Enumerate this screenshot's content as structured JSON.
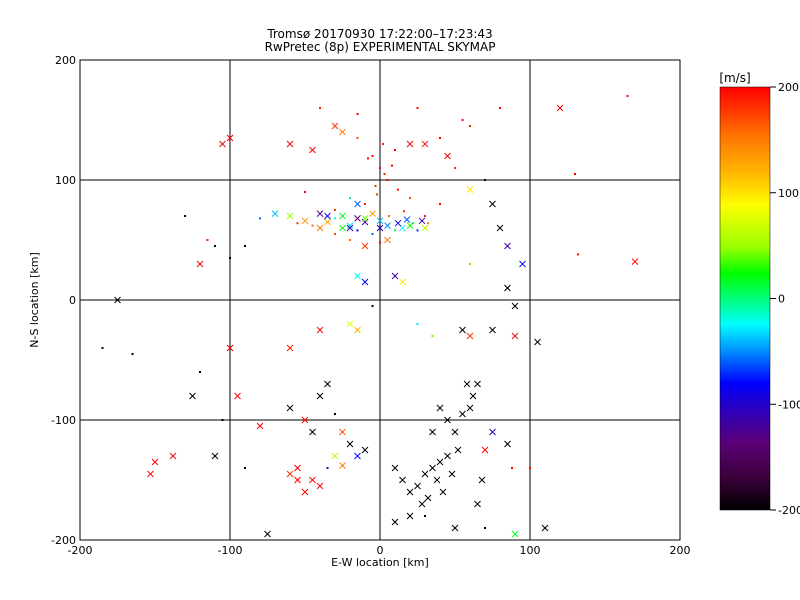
{
  "chart_data": {
    "type": "scatter",
    "title": "Tromsø 20170930 17:22:00–17:23:43",
    "subtitle": "RwPretec (8p) EXPERIMENTAL SKYMAP",
    "xlabel": "E-W location [km]",
    "ylabel": "N-S location [km]",
    "xlim": [
      -200,
      200
    ],
    "ylim": [
      -200,
      200
    ],
    "x_ticks": [
      -200,
      -100,
      0,
      100,
      200
    ],
    "y_ticks": [
      -200,
      -100,
      0,
      100,
      200
    ],
    "x_tick_labels": [
      "-200",
      "-100",
      "0",
      "100",
      "200"
    ],
    "y_tick_labels": [
      "-200",
      "-100",
      "0",
      "100",
      "200"
    ],
    "grid": true,
    "colorbar": {
      "label": "[m/s]",
      "range": [
        -200,
        200
      ],
      "ticks": [
        200,
        100,
        0,
        -100,
        -200
      ],
      "tick_labels": [
        "200",
        "100",
        "0",
        "-100",
        "-200"
      ],
      "placement": "right",
      "colormap": [
        "#000000",
        "#3d003d",
        "#5a0078",
        "#2a00c0",
        "#0000ff",
        "#0096ff",
        "#00ffff",
        "#00ff78",
        "#00ff00",
        "#96ff00",
        "#ffff00",
        "#ffb400",
        "#ff7800",
        "#ff0000"
      ]
    },
    "markers": {
      "small": "dot",
      "large": "x"
    },
    "points": [
      [
        -45,
        125,
        210,
        "x"
      ],
      [
        -30,
        145,
        180,
        "x"
      ],
      [
        -25,
        140,
        150,
        "x"
      ],
      [
        -15,
        135,
        170,
        "dot"
      ],
      [
        -5,
        120,
        200,
        "dot"
      ],
      [
        0,
        110,
        200,
        "dot"
      ],
      [
        3,
        105,
        190,
        "dot"
      ],
      [
        5,
        100,
        200,
        "dot"
      ],
      [
        -3,
        95,
        185,
        "dot"
      ],
      [
        8,
        112,
        200,
        "dot"
      ],
      [
        -8,
        118,
        195,
        "dot"
      ],
      [
        10,
        125,
        200,
        "dot"
      ],
      [
        2,
        130,
        190,
        "dot"
      ],
      [
        -2,
        88,
        180,
        "dot"
      ],
      [
        12,
        92,
        200,
        "dot"
      ],
      [
        20,
        130,
        200,
        "x"
      ],
      [
        30,
        130,
        190,
        "x"
      ],
      [
        40,
        135,
        200,
        "dot"
      ],
      [
        45,
        120,
        200,
        "x"
      ],
      [
        50,
        110,
        180,
        "dot"
      ],
      [
        40,
        80,
        200,
        "dot"
      ],
      [
        30,
        70,
        190,
        "dot"
      ],
      [
        20,
        85,
        170,
        "dot"
      ],
      [
        -10,
        80,
        190,
        "dot"
      ],
      [
        -30,
        75,
        180,
        "dot"
      ],
      [
        -50,
        90,
        200,
        "dot"
      ],
      [
        -60,
        130,
        200,
        "x"
      ],
      [
        -100,
        135,
        200,
        "x"
      ],
      [
        -105,
        130,
        210,
        "x"
      ],
      [
        55,
        150,
        200,
        "dot"
      ],
      [
        60,
        145,
        190,
        "dot"
      ],
      [
        25,
        160,
        200,
        "dot"
      ],
      [
        -15,
        155,
        200,
        "dot"
      ],
      [
        -40,
        160,
        190,
        "dot"
      ],
      [
        80,
        160,
        200,
        "dot"
      ],
      [
        165,
        170,
        200,
        "dot"
      ],
      [
        170,
        32,
        210,
        "x"
      ],
      [
        132,
        38,
        200,
        "dot"
      ],
      [
        130,
        105,
        200,
        "dot"
      ],
      [
        120,
        160,
        200,
        "x"
      ],
      [
        -25,
        60,
        20,
        "x"
      ],
      [
        -20,
        62,
        -30,
        "x"
      ],
      [
        -15,
        58,
        -80,
        "dot"
      ],
      [
        -10,
        65,
        -120,
        "x"
      ],
      [
        -5,
        55,
        -60,
        "dot"
      ],
      [
        0,
        60,
        -100,
        "x"
      ],
      [
        5,
        62,
        -50,
        "x"
      ],
      [
        10,
        58,
        0,
        "dot"
      ],
      [
        15,
        60,
        -20,
        "x"
      ],
      [
        20,
        62,
        30,
        "x"
      ],
      [
        25,
        58,
        -70,
        "dot"
      ],
      [
        30,
        60,
        60,
        "x"
      ],
      [
        -35,
        65,
        120,
        "x"
      ],
      [
        -40,
        60,
        150,
        "x"
      ],
      [
        -30,
        55,
        170,
        "dot"
      ],
      [
        -20,
        50,
        160,
        "dot"
      ],
      [
        -10,
        45,
        180,
        "x"
      ],
      [
        0,
        48,
        200,
        "dot"
      ],
      [
        5,
        50,
        150,
        "x"
      ],
      [
        -15,
        68,
        -140,
        "x"
      ],
      [
        -60,
        70,
        50,
        "x"
      ],
      [
        -70,
        72,
        -40,
        "x"
      ],
      [
        -80,
        68,
        -60,
        "dot"
      ],
      [
        -90,
        45,
        -200,
        "dot"
      ],
      [
        -110,
        45,
        -200,
        "dot"
      ],
      [
        -115,
        50,
        190,
        "dot"
      ],
      [
        -120,
        30,
        200,
        "x"
      ],
      [
        -100,
        35,
        -200,
        "dot"
      ],
      [
        -130,
        70,
        -200,
        "dot"
      ],
      [
        60,
        92,
        100,
        "x"
      ],
      [
        70,
        100,
        -200,
        "dot"
      ],
      [
        75,
        80,
        -200,
        "x"
      ],
      [
        80,
        60,
        -200,
        "x"
      ],
      [
        85,
        45,
        -120,
        "x"
      ],
      [
        95,
        30,
        -80,
        "x"
      ],
      [
        85,
        10,
        -200,
        "x"
      ],
      [
        90,
        -5,
        -200,
        "x"
      ],
      [
        60,
        30,
        40,
        "dot"
      ],
      [
        10,
        20,
        -120,
        "x"
      ],
      [
        15,
        15,
        100,
        "x"
      ],
      [
        -15,
        20,
        -20,
        "x"
      ],
      [
        -10,
        15,
        -80,
        "x"
      ],
      [
        -5,
        -5,
        -200,
        "dot"
      ],
      [
        -20,
        -20,
        80,
        "x"
      ],
      [
        -15,
        -25,
        120,
        "x"
      ],
      [
        25,
        -20,
        -30,
        "dot"
      ],
      [
        35,
        -30,
        40,
        "dot"
      ],
      [
        55,
        -25,
        -200,
        "x"
      ],
      [
        60,
        -30,
        180,
        "x"
      ],
      [
        75,
        -25,
        -200,
        "x"
      ],
      [
        90,
        -30,
        200,
        "x"
      ],
      [
        105,
        -35,
        -200,
        "x"
      ],
      [
        -40,
        -25,
        200,
        "x"
      ],
      [
        -60,
        -40,
        190,
        "x"
      ],
      [
        -100,
        -40,
        200,
        "x"
      ],
      [
        -120,
        -60,
        -200,
        "dot"
      ],
      [
        -165,
        -45,
        -200,
        "dot"
      ],
      [
        -185,
        -40,
        -200,
        "dot"
      ],
      [
        -175,
        0,
        -200,
        "x"
      ],
      [
        -125,
        -80,
        -200,
        "x"
      ],
      [
        -95,
        -80,
        200,
        "x"
      ],
      [
        -60,
        -90,
        -200,
        "x"
      ],
      [
        -50,
        -100,
        200,
        "x"
      ],
      [
        -45,
        -110,
        -200,
        "x"
      ],
      [
        -40,
        -80,
        -200,
        "x"
      ],
      [
        -35,
        -70,
        -200,
        "x"
      ],
      [
        -30,
        -95,
        -200,
        "dot"
      ],
      [
        -25,
        -110,
        170,
        "x"
      ],
      [
        -20,
        -120,
        -200,
        "x"
      ],
      [
        -15,
        -130,
        -80,
        "x"
      ],
      [
        -10,
        -125,
        -200,
        "x"
      ],
      [
        -30,
        -130,
        60,
        "x"
      ],
      [
        -25,
        -138,
        150,
        "x"
      ],
      [
        -35,
        -140,
        -120,
        "dot"
      ],
      [
        -55,
        -140,
        200,
        "x"
      ],
      [
        -60,
        -145,
        180,
        "x"
      ],
      [
        -55,
        -150,
        200,
        "x"
      ],
      [
        -45,
        -150,
        200,
        "x"
      ],
      [
        -40,
        -155,
        210,
        "x"
      ],
      [
        -50,
        -160,
        200,
        "x"
      ],
      [
        -110,
        -130,
        -200,
        "x"
      ],
      [
        -150,
        -135,
        200,
        "x"
      ],
      [
        -153,
        -145,
        200,
        "x"
      ],
      [
        -138,
        -130,
        200,
        "x"
      ],
      [
        -105,
        -100,
        -200,
        "dot"
      ],
      [
        10,
        -140,
        -200,
        "x"
      ],
      [
        15,
        -150,
        -200,
        "x"
      ],
      [
        20,
        -160,
        -200,
        "x"
      ],
      [
        25,
        -155,
        -200,
        "x"
      ],
      [
        30,
        -145,
        -200,
        "x"
      ],
      [
        35,
        -140,
        -200,
        "x"
      ],
      [
        40,
        -135,
        -200,
        "x"
      ],
      [
        45,
        -130,
        -200,
        "x"
      ],
      [
        38,
        -150,
        -200,
        "x"
      ],
      [
        32,
        -165,
        -200,
        "x"
      ],
      [
        28,
        -170,
        -200,
        "x"
      ],
      [
        42,
        -160,
        -200,
        "x"
      ],
      [
        48,
        -145,
        -200,
        "x"
      ],
      [
        52,
        -125,
        -200,
        "x"
      ],
      [
        50,
        -110,
        -200,
        "x"
      ],
      [
        45,
        -100,
        -200,
        "x"
      ],
      [
        55,
        -95,
        -200,
        "x"
      ],
      [
        60,
        -90,
        -200,
        "x"
      ],
      [
        62,
        -80,
        -200,
        "x"
      ],
      [
        65,
        -70,
        -200,
        "x"
      ],
      [
        58,
        -70,
        -200,
        "x"
      ],
      [
        40,
        -90,
        -200,
        "x"
      ],
      [
        35,
        -110,
        -200,
        "x"
      ],
      [
        20,
        -180,
        -200,
        "x"
      ],
      [
        10,
        -185,
        -200,
        "x"
      ],
      [
        30,
        -180,
        -200,
        "dot"
      ],
      [
        50,
        -190,
        -200,
        "x"
      ],
      [
        70,
        -190,
        -200,
        "dot"
      ],
      [
        65,
        -170,
        -200,
        "x"
      ],
      [
        68,
        -150,
        -200,
        "x"
      ],
      [
        70,
        -125,
        200,
        "x"
      ],
      [
        75,
        -110,
        -100,
        "x"
      ],
      [
        85,
        -120,
        -200,
        "x"
      ],
      [
        88,
        -140,
        200,
        "dot"
      ],
      [
        100,
        -140,
        200,
        "dot"
      ],
      [
        110,
        -190,
        -200,
        "x"
      ],
      [
        90,
        -195,
        20,
        "x"
      ],
      [
        -75,
        -195,
        -200,
        "x"
      ],
      [
        -80,
        -105,
        200,
        "x"
      ],
      [
        -90,
        -140,
        -200,
        "dot"
      ],
      [
        -20,
        85,
        0,
        "dot"
      ],
      [
        -15,
        80,
        -60,
        "x"
      ],
      [
        -20,
        60,
        -110,
        "x"
      ],
      [
        -40,
        72,
        -130,
        "x"
      ],
      [
        -35,
        70,
        -90,
        "x"
      ],
      [
        -30,
        68,
        -20,
        "dot"
      ],
      [
        -25,
        70,
        20,
        "x"
      ],
      [
        -10,
        68,
        40,
        "x"
      ],
      [
        0,
        66,
        -40,
        "x"
      ],
      [
        12,
        64,
        -90,
        "x"
      ],
      [
        18,
        67,
        -60,
        "x"
      ],
      [
        22,
        64,
        10,
        "dot"
      ],
      [
        28,
        66,
        -110,
        "x"
      ],
      [
        32,
        64,
        150,
        "dot"
      ],
      [
        -45,
        62,
        160,
        "dot"
      ],
      [
        -50,
        66,
        140,
        "x"
      ],
      [
        -55,
        64,
        180,
        "dot"
      ],
      [
        -5,
        72,
        130,
        "x"
      ],
      [
        6,
        70,
        160,
        "dot"
      ],
      [
        16,
        74,
        180,
        "dot"
      ]
    ]
  }
}
